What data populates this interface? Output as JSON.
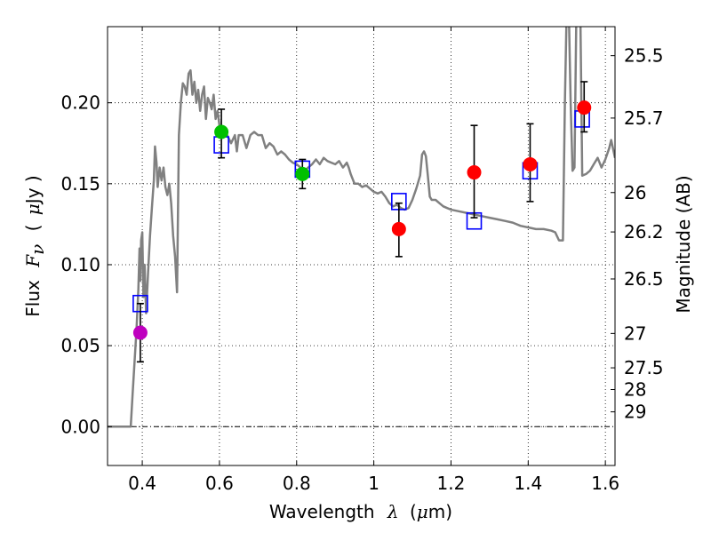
{
  "chart_data": {
    "type": "scatter",
    "title": "",
    "xlabel": {
      "prefix": "Wavelength",
      "symbol": "λ",
      "unit_open": "(",
      "unit_mu": "μ",
      "unit_rest": "m)"
    },
    "ylabel": {
      "prefix": "Flux",
      "symbol": "F",
      "subscript": "ν",
      "unit_open": "(",
      "unit_mu": "μ",
      "unit_rest": "Jy )"
    },
    "y2label": "Magnitude (AB)",
    "xlim": [
      0.31,
      1.625
    ],
    "ylim": [
      -0.024,
      0.247
    ],
    "grid": true,
    "xticks": [
      {
        "v": 0.4,
        "label": "0.4"
      },
      {
        "v": 0.6,
        "label": "0.6"
      },
      {
        "v": 0.8,
        "label": "0.8"
      },
      {
        "v": 1.0,
        "label": "1"
      },
      {
        "v": 1.2,
        "label": "1.2"
      },
      {
        "v": 1.4,
        "label": "1.4"
      },
      {
        "v": 1.6,
        "label": "1.6"
      }
    ],
    "yticks": [
      {
        "v": 0.0,
        "label": "0.00"
      },
      {
        "v": 0.05,
        "label": "0.05"
      },
      {
        "v": 0.1,
        "label": "0.10"
      },
      {
        "v": 0.15,
        "label": "0.15"
      },
      {
        "v": 0.2,
        "label": "0.20"
      }
    ],
    "y2ticks": [
      {
        "mag": 25.5,
        "label": "25.5"
      },
      {
        "mag": 25.7,
        "label": "25.7"
      },
      {
        "mag": 26,
        "label": "26"
      },
      {
        "mag": 26.2,
        "label": "26.2"
      },
      {
        "mag": 26.5,
        "label": "26.5"
      },
      {
        "mag": 27,
        "label": "27"
      },
      {
        "mag": 27.5,
        "label": "27.5"
      },
      {
        "mag": 28,
        "label": "28"
      },
      {
        "mag": 29,
        "label": "29"
      }
    ],
    "model_sed": {
      "name": "model spectrum",
      "color": "#808080",
      "points": [
        [
          0.31,
          0.0
        ],
        [
          0.36,
          0.0
        ],
        [
          0.37,
          0.0
        ],
        [
          0.375,
          0.02
        ],
        [
          0.38,
          0.04
        ],
        [
          0.385,
          0.06
        ],
        [
          0.39,
          0.085
        ],
        [
          0.393,
          0.11
        ],
        [
          0.395,
          0.09
        ],
        [
          0.397,
          0.115
        ],
        [
          0.4,
          0.12
        ],
        [
          0.403,
          0.08
        ],
        [
          0.406,
          0.1
        ],
        [
          0.41,
          0.07
        ],
        [
          0.415,
          0.095
        ],
        [
          0.42,
          0.118
        ],
        [
          0.425,
          0.135
        ],
        [
          0.43,
          0.152
        ],
        [
          0.433,
          0.173
        ],
        [
          0.437,
          0.163
        ],
        [
          0.44,
          0.148
        ],
        [
          0.445,
          0.16
        ],
        [
          0.45,
          0.152
        ],
        [
          0.455,
          0.16
        ],
        [
          0.46,
          0.148
        ],
        [
          0.465,
          0.143
        ],
        [
          0.47,
          0.15
        ],
        [
          0.475,
          0.138
        ],
        [
          0.48,
          0.118
        ],
        [
          0.485,
          0.105
        ],
        [
          0.49,
          0.083
        ],
        [
          0.495,
          0.18
        ],
        [
          0.5,
          0.2
        ],
        [
          0.505,
          0.212
        ],
        [
          0.51,
          0.21
        ],
        [
          0.515,
          0.205
        ],
        [
          0.52,
          0.218
        ],
        [
          0.525,
          0.22
        ],
        [
          0.53,
          0.205
        ],
        [
          0.535,
          0.213
        ],
        [
          0.54,
          0.2
        ],
        [
          0.545,
          0.208
        ],
        [
          0.55,
          0.195
        ],
        [
          0.555,
          0.205
        ],
        [
          0.56,
          0.21
        ],
        [
          0.565,
          0.19
        ],
        [
          0.57,
          0.203
        ],
        [
          0.575,
          0.2
        ],
        [
          0.58,
          0.196
        ],
        [
          0.585,
          0.205
        ],
        [
          0.59,
          0.19
        ],
        [
          0.595,
          0.195
        ],
        [
          0.6,
          0.186
        ],
        [
          0.61,
          0.182
        ],
        [
          0.62,
          0.18
        ],
        [
          0.63,
          0.175
        ],
        [
          0.64,
          0.18
        ],
        [
          0.645,
          0.17
        ],
        [
          0.65,
          0.18
        ],
        [
          0.66,
          0.18
        ],
        [
          0.67,
          0.172
        ],
        [
          0.68,
          0.18
        ],
        [
          0.69,
          0.182
        ],
        [
          0.7,
          0.18
        ],
        [
          0.71,
          0.18
        ],
        [
          0.72,
          0.172
        ],
        [
          0.73,
          0.175
        ],
        [
          0.74,
          0.173
        ],
        [
          0.75,
          0.168
        ],
        [
          0.76,
          0.17
        ],
        [
          0.77,
          0.168
        ],
        [
          0.78,
          0.165
        ],
        [
          0.79,
          0.163
        ],
        [
          0.8,
          0.162
        ],
        [
          0.81,
          0.16
        ],
        [
          0.82,
          0.158
        ],
        [
          0.83,
          0.16
        ],
        [
          0.84,
          0.162
        ],
        [
          0.85,
          0.165
        ],
        [
          0.86,
          0.162
        ],
        [
          0.87,
          0.166
        ],
        [
          0.88,
          0.164
        ],
        [
          0.89,
          0.163
        ],
        [
          0.9,
          0.162
        ],
        [
          0.91,
          0.164
        ],
        [
          0.92,
          0.16
        ],
        [
          0.93,
          0.163
        ],
        [
          0.935,
          0.16
        ],
        [
          0.94,
          0.156
        ],
        [
          0.95,
          0.15
        ],
        [
          0.96,
          0.15
        ],
        [
          0.97,
          0.148
        ],
        [
          0.98,
          0.149
        ],
        [
          0.99,
          0.147
        ],
        [
          1.0,
          0.145
        ],
        [
          1.01,
          0.144
        ],
        [
          1.02,
          0.145
        ],
        [
          1.03,
          0.142
        ],
        [
          1.04,
          0.138
        ],
        [
          1.05,
          0.136
        ],
        [
          1.06,
          0.137
        ],
        [
          1.07,
          0.135
        ],
        [
          1.08,
          0.134
        ],
        [
          1.09,
          0.135
        ],
        [
          1.1,
          0.14
        ],
        [
          1.11,
          0.147
        ],
        [
          1.12,
          0.155
        ],
        [
          1.125,
          0.168
        ],
        [
          1.13,
          0.17
        ],
        [
          1.135,
          0.167
        ],
        [
          1.14,
          0.155
        ],
        [
          1.145,
          0.142
        ],
        [
          1.15,
          0.14
        ],
        [
          1.16,
          0.14
        ],
        [
          1.17,
          0.138
        ],
        [
          1.18,
          0.136
        ],
        [
          1.19,
          0.135
        ],
        [
          1.2,
          0.134
        ],
        [
          1.22,
          0.133
        ],
        [
          1.24,
          0.132
        ],
        [
          1.26,
          0.131
        ],
        [
          1.28,
          0.13
        ],
        [
          1.3,
          0.129
        ],
        [
          1.32,
          0.128
        ],
        [
          1.34,
          0.127
        ],
        [
          1.36,
          0.126
        ],
        [
          1.38,
          0.124
        ],
        [
          1.4,
          0.123
        ],
        [
          1.42,
          0.122
        ],
        [
          1.44,
          0.122
        ],
        [
          1.46,
          0.121
        ],
        [
          1.47,
          0.12
        ],
        [
          1.48,
          0.115
        ],
        [
          1.49,
          0.115
        ],
        [
          1.495,
          0.2
        ],
        [
          1.5,
          0.26
        ],
        [
          1.505,
          0.26
        ],
        [
          1.51,
          0.2
        ],
        [
          1.515,
          0.158
        ],
        [
          1.52,
          0.16
        ],
        [
          1.525,
          0.26
        ],
        [
          1.535,
          0.26
        ],
        [
          1.54,
          0.155
        ],
        [
          1.55,
          0.156
        ],
        [
          1.56,
          0.158
        ],
        [
          1.57,
          0.162
        ],
        [
          1.58,
          0.166
        ],
        [
          1.59,
          0.16
        ],
        [
          1.6,
          0.165
        ],
        [
          1.61,
          0.172
        ],
        [
          1.615,
          0.177
        ],
        [
          1.625,
          0.166
        ]
      ]
    },
    "model_points": {
      "name": "model band fluxes",
      "color": "#0000ff",
      "points": [
        [
          0.395,
          0.076
        ],
        [
          0.605,
          0.174
        ],
        [
          0.815,
          0.159
        ],
        [
          1.065,
          0.139
        ],
        [
          1.26,
          0.127
        ],
        [
          1.405,
          0.158
        ],
        [
          1.54,
          0.19
        ]
      ]
    },
    "observed": {
      "name": "observed photometry",
      "points": [
        {
          "x": 0.395,
          "y": 0.058,
          "ylo": 0.04,
          "yhi": 0.076,
          "color": "#bf00bf"
        },
        {
          "x": 0.605,
          "y": 0.182,
          "ylo": 0.166,
          "yhi": 0.196,
          "color": "#00c000"
        },
        {
          "x": 0.815,
          "y": 0.156,
          "ylo": 0.147,
          "yhi": 0.165,
          "color": "#00c000"
        },
        {
          "x": 1.065,
          "y": 0.122,
          "ylo": 0.105,
          "yhi": 0.138,
          "color": "#ff0000"
        },
        {
          "x": 1.26,
          "y": 0.157,
          "ylo": 0.129,
          "yhi": 0.186,
          "color": "#ff0000"
        },
        {
          "x": 1.405,
          "y": 0.162,
          "ylo": 0.139,
          "yhi": 0.187,
          "color": "#ff0000"
        },
        {
          "x": 1.545,
          "y": 0.197,
          "ylo": 0.182,
          "yhi": 0.213,
          "color": "#ff0000"
        }
      ]
    }
  }
}
